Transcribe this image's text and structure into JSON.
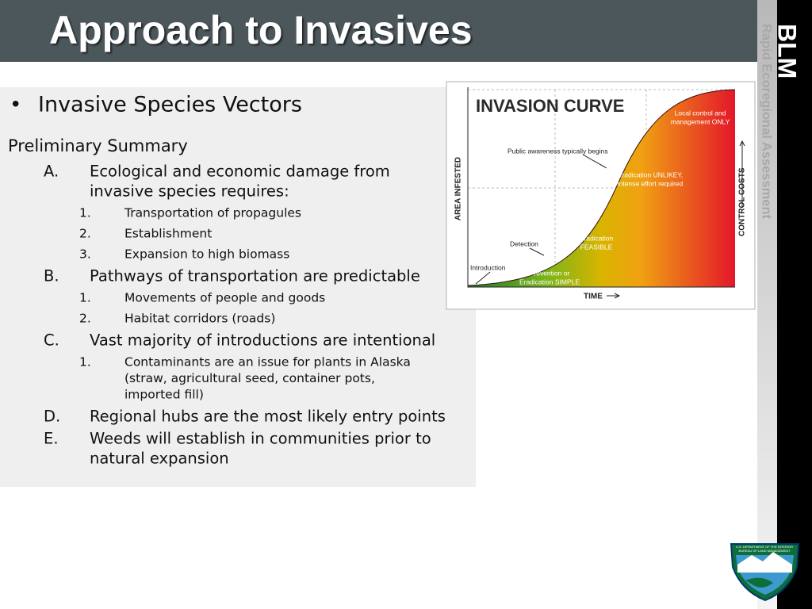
{
  "header": {
    "title": "Approach to Invasives"
  },
  "sidebar": {
    "brand": "BLM",
    "program": "Rapid Ecoregional Assessment",
    "logo_lines": [
      "U.S. DEPARTMENT OF THE INTERIOR",
      "BUREAU OF LAND MANAGEMENT"
    ]
  },
  "content": {
    "bullet": "Invasive Species Vectors",
    "subtitle": "Preliminary Summary",
    "items": [
      {
        "marker": "A.",
        "lines": [
          "Ecological and economic damage from",
          "invasive species requires:"
        ],
        "subitems": [
          {
            "marker": "1.",
            "lines": [
              "Transportation of propagules"
            ]
          },
          {
            "marker": "2.",
            "lines": [
              "Establishment"
            ]
          },
          {
            "marker": "3.",
            "lines": [
              "Expansion to high biomass"
            ]
          }
        ]
      },
      {
        "marker": "B.",
        "lines": [
          "Pathways of transportation are predictable"
        ],
        "subitems": [
          {
            "marker": "1.",
            "lines": [
              "Movements of people and goods"
            ]
          },
          {
            "marker": "2.",
            "lines": [
              "Habitat corridors (roads)"
            ]
          }
        ]
      },
      {
        "marker": "C.",
        "lines": [
          "Vast majority of introductions are intentional"
        ],
        "subitems": [
          {
            "marker": "1.",
            "lines": [
              "Contaminants are an issue for plants in Alaska",
              "(straw, agricultural seed, container pots,",
              "imported fill)"
            ]
          }
        ]
      },
      {
        "marker": "D.",
        "lines": [
          "Regional hubs are the most likely entry points"
        ],
        "subitems": []
      },
      {
        "marker": "E.",
        "lines": [
          "Weeds will establish in communities prior to",
          "natural expansion"
        ],
        "subitems": []
      }
    ]
  },
  "figure": {
    "title": "INVASION CURVE",
    "y_axis": "AREA INFESTED",
    "y2_axis": "CONTROL COSTS",
    "x_axis": "TIME",
    "labels": [
      {
        "lines": [
          "Local control and",
          "management ONLY"
        ]
      },
      {
        "lines": [
          "Public awareness typically begins"
        ]
      },
      {
        "lines": [
          "Eradication UNLIKEY,",
          "intense effort required"
        ]
      },
      {
        "lines": [
          "Eradication",
          "FEASIBLE"
        ]
      },
      {
        "lines": [
          "Detection"
        ]
      },
      {
        "lines": [
          "Introduction"
        ]
      },
      {
        "lines": [
          "Prevention or",
          "Eradication SIMPLE"
        ]
      }
    ]
  }
}
